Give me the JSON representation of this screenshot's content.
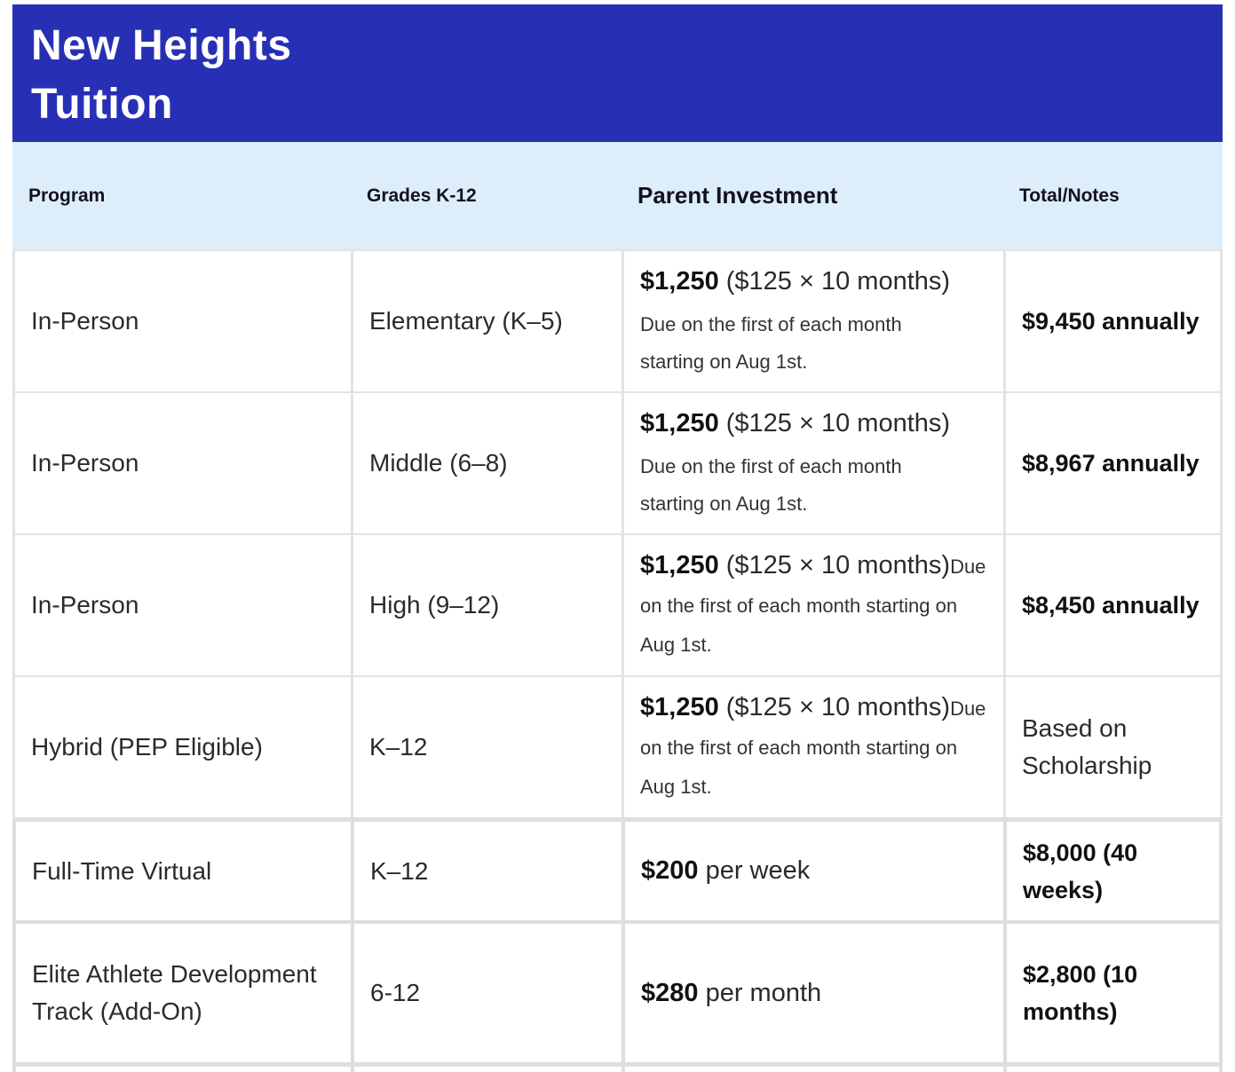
{
  "colors": {
    "banner_bg": "#2730b4",
    "header_row_bg": "#ddeefa",
    "border": "#e3e3e3",
    "border_thick": "#dedede"
  },
  "title": {
    "line1": "New Heights",
    "line2": "Tuition"
  },
  "table": {
    "columns": [
      "Program",
      "Grades K-12",
      "Parent Investment",
      "Total/Notes"
    ],
    "rows": [
      {
        "program": "In-Person",
        "grades": "Elementary (K–5)",
        "price": "$1,250",
        "price_suffix": " ($125 × 10 months)",
        "due": "Due on the first of each month starting on Aug 1st.",
        "total": "$9,450 annually"
      },
      {
        "program": "In-Person",
        "grades": "Middle (6–8)",
        "price": "$1,250",
        "price_suffix": " ($125 × 10 months)",
        "due": "Due on the first of each month starting on Aug 1st.",
        "total": "$8,967 annually"
      },
      {
        "program": "In-Person",
        "grades": "High (9–12)",
        "price": "$1,250",
        "price_suffix": " ($125 × 10 months)",
        "due": "Due on the first of each month starting on Aug 1st.",
        "total": "$8,450 annually"
      },
      {
        "program": "Hybrid (PEP Eligible)",
        "grades": "K–12",
        "price": "$1,250",
        "price_suffix": " ($125 × 10 months)",
        "due": "Due on the first of each month starting on Aug 1st.",
        "total": "Based on Scholarship"
      },
      {
        "program": "Full-Time Virtual",
        "grades": "K–12",
        "price": "$200",
        "price_suffix": " per week",
        "total": "$8,000 (40 weeks)"
      },
      {
        "program": "Elite Athlete Development Track (Add-On)",
        "grades": "6-12",
        "price": "$280",
        "price_suffix": " per month",
        "total": "$2,800 (10 months)"
      }
    ]
  }
}
